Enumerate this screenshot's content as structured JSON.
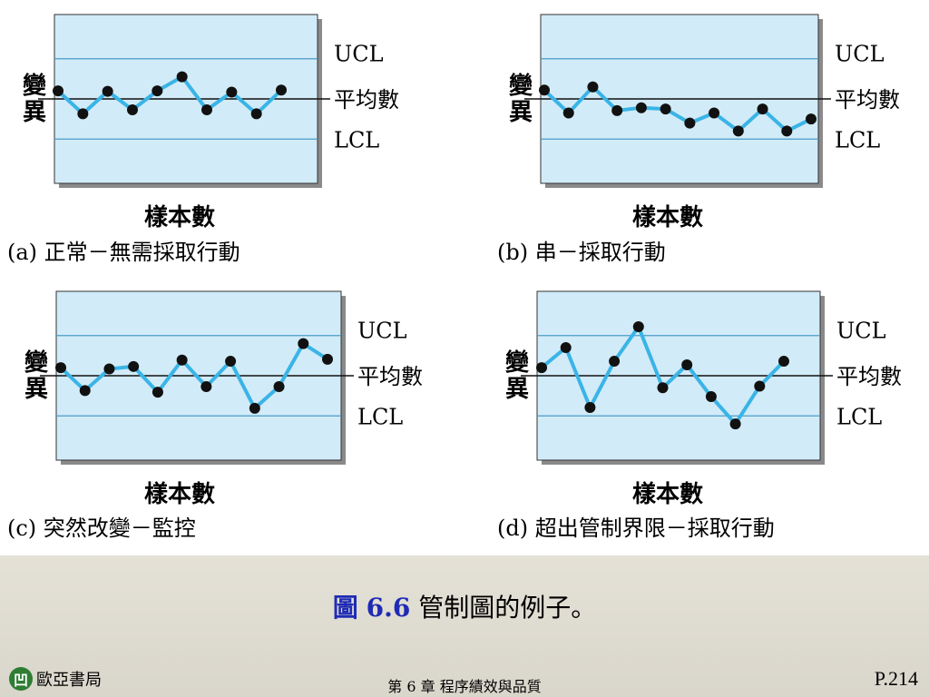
{
  "chart_data": [
    {
      "type": "line",
      "caption": "(a) 正常－無需採取行動",
      "ylabel": "變異",
      "xlabel": "樣本數",
      "line_labels": {
        "ucl": "UCL",
        "mean": "平均數",
        "lcl": "LCL"
      },
      "limits": {
        "ucl": 1,
        "mean": 0,
        "lcl": -1
      },
      "ylim": [
        -2.1,
        2.1
      ],
      "x": [
        1,
        2,
        3,
        4,
        5,
        6,
        7,
        8,
        9,
        10
      ],
      "values": [
        0.2,
        -0.37,
        0.19,
        -0.27,
        0.2,
        0.55,
        -0.27,
        0.17,
        -0.37,
        0.22
      ],
      "line_color": "#3ab4e6",
      "plot_bg": "#d2ebf8"
    },
    {
      "type": "line",
      "caption": "(b) 串－採取行動",
      "ylabel": "變異",
      "xlabel": "樣本數",
      "line_labels": {
        "ucl": "UCL",
        "mean": "平均數",
        "lcl": "LCL"
      },
      "limits": {
        "ucl": 1,
        "mean": 0,
        "lcl": -1
      },
      "ylim": [
        -2.1,
        2.1
      ],
      "x": [
        1,
        2,
        3,
        4,
        5,
        6,
        7,
        8,
        9,
        10,
        11,
        12
      ],
      "values": [
        0.22,
        -0.35,
        0.3,
        -0.29,
        -0.22,
        -0.25,
        -0.6,
        -0.35,
        -0.8,
        -0.25,
        -0.8,
        -0.5
      ],
      "line_color": "#3ab4e6",
      "plot_bg": "#d2ebf8"
    },
    {
      "type": "line",
      "caption": "(c) 突然改變－監控",
      "ylabel": "變異",
      "xlabel": "樣本數",
      "line_labels": {
        "ucl": "UCL",
        "mean": "平均數",
        "lcl": "LCL"
      },
      "limits": {
        "ucl": 1,
        "mean": 0,
        "lcl": -1
      },
      "ylim": [
        -2.1,
        2.1
      ],
      "x": [
        1,
        2,
        3,
        4,
        5,
        6,
        7,
        8,
        9,
        10,
        11,
        12
      ],
      "values": [
        0.2,
        -0.37,
        0.17,
        0.23,
        -0.41,
        0.39,
        -0.27,
        0.36,
        -0.81,
        -0.27,
        0.8,
        0.41
      ],
      "line_color": "#3ab4e6",
      "plot_bg": "#d2ebf8"
    },
    {
      "type": "line",
      "caption": "(d) 超出管制界限－採取行動",
      "ylabel": "變異",
      "xlabel": "樣本數",
      "line_labels": {
        "ucl": "UCL",
        "mean": "平均數",
        "lcl": "LCL"
      },
      "limits": {
        "ucl": 1,
        "mean": 0,
        "lcl": -1
      },
      "ylim": [
        -2.1,
        2.1
      ],
      "x": [
        1,
        2,
        3,
        4,
        5,
        6,
        7,
        8,
        9,
        10,
        11
      ],
      "values": [
        0.2,
        0.7,
        -0.79,
        0.36,
        1.22,
        -0.3,
        0.27,
        -0.52,
        -1.2,
        -0.26,
        0.36
      ],
      "line_color": "#3ab4e6",
      "plot_bg": "#d2ebf8"
    }
  ],
  "figure_caption": {
    "label": "圖",
    "number": "6.6",
    "text": "管制圖的例子。"
  },
  "footer": {
    "publisher_logo": "凹",
    "publisher": "歐亞書局",
    "chapter": "第 6 章  程序績效與品質",
    "page": "P.214"
  }
}
